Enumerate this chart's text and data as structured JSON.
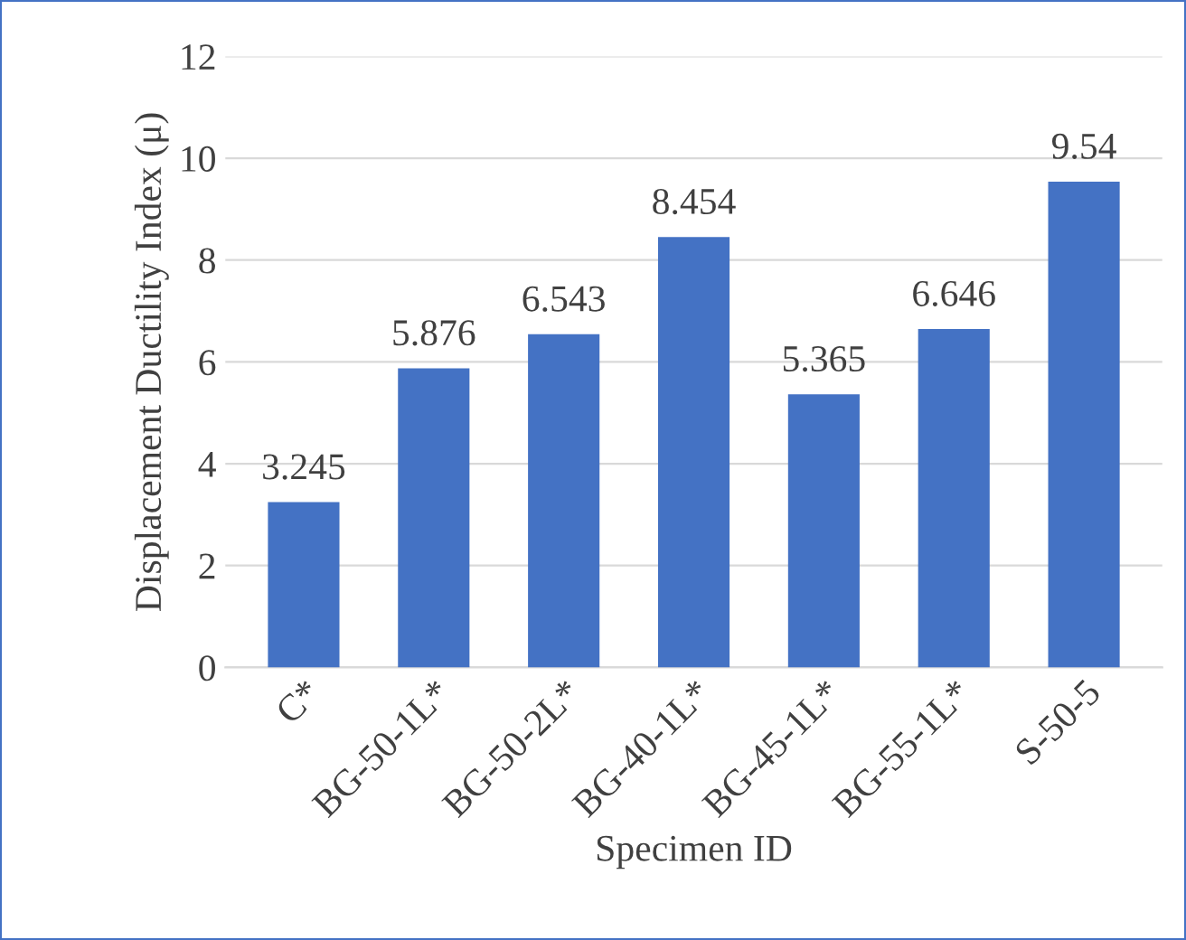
{
  "chart_data": {
    "type": "bar",
    "xlabel": "Specimen ID",
    "ylabel": "Displacement Ductility Index (μ)",
    "categories": [
      "C*",
      "BG-50-1L*",
      "BG-50-2L*",
      "BG-40-1L*",
      "BG-45-1L*",
      "BG-55-1L*",
      "S-50-5"
    ],
    "values": [
      3.245,
      5.876,
      6.543,
      8.454,
      5.365,
      6.646,
      9.54
    ],
    "color": "#4472c4",
    "ylim": [
      0,
      12
    ],
    "yticks": [
      0,
      2,
      4,
      6,
      8,
      10,
      12
    ],
    "grid": "y",
    "data_labels": true,
    "legend": false
  }
}
